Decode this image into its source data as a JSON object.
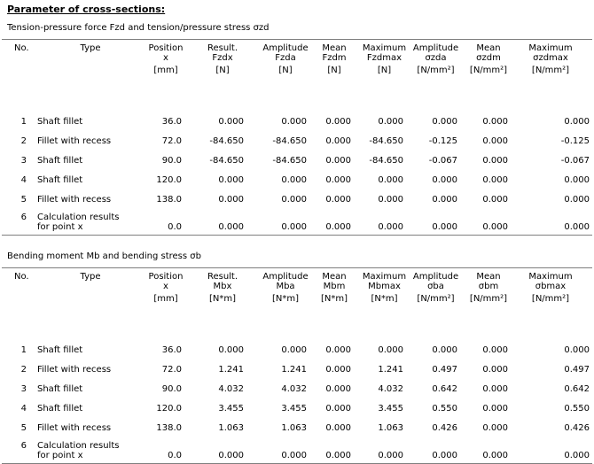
{
  "title": "Parameter of cross-sections:",
  "sections": [
    {
      "title": "Tension-pressure force Fzd and tension/pressure stress σzd",
      "headers": {
        "no": "No.",
        "type": "Type",
        "pos": [
          "Position",
          "x",
          "[mm]"
        ],
        "c1": [
          "Result.",
          "Fzdx",
          "[N]"
        ],
        "c2": [
          "Amplitude",
          "Fzda",
          "[N]"
        ],
        "c3": [
          "Mean",
          "Fzdm",
          "[N]"
        ],
        "c4": [
          "Maximum",
          "Fzdmax",
          "[N]"
        ],
        "c5": [
          "Amplitude",
          "σzda",
          "[N/mm²]"
        ],
        "c6": [
          "Mean",
          "σzdm",
          "[N/mm²]"
        ],
        "c7": [
          "Maximum",
          "σzdmax",
          "[N/mm²]"
        ]
      },
      "rows": [
        {
          "no": "1",
          "type": [
            "Shaft fillet"
          ],
          "pos": "36.0",
          "c1": "0.000",
          "c2": "0.000",
          "c3": "0.000",
          "c4": "0.000",
          "c5": "0.000",
          "c6": "0.000",
          "c7": "0.000"
        },
        {
          "no": "2",
          "type": [
            "Fillet with recess"
          ],
          "pos": "72.0",
          "c1": "-84.650",
          "c2": "-84.650",
          "c3": "0.000",
          "c4": "-84.650",
          "c5": "-0.125",
          "c6": "0.000",
          "c7": "-0.125"
        },
        {
          "no": "3",
          "type": [
            "Shaft fillet"
          ],
          "pos": "90.0",
          "c1": "-84.650",
          "c2": "-84.650",
          "c3": "0.000",
          "c4": "-84.650",
          "c5": "-0.067",
          "c6": "0.000",
          "c7": "-0.067"
        },
        {
          "no": "4",
          "type": [
            "Shaft fillet"
          ],
          "pos": "120.0",
          "c1": "0.000",
          "c2": "0.000",
          "c3": "0.000",
          "c4": "0.000",
          "c5": "0.000",
          "c6": "0.000",
          "c7": "0.000"
        },
        {
          "no": "5",
          "type": [
            "Fillet with recess"
          ],
          "pos": "138.0",
          "c1": "0.000",
          "c2": "0.000",
          "c3": "0.000",
          "c4": "0.000",
          "c5": "0.000",
          "c6": "0.000",
          "c7": "0.000"
        },
        {
          "no": "6",
          "type": [
            "Calculation results",
            "for point x"
          ],
          "pos": "0.0",
          "c1": "0.000",
          "c2": "0.000",
          "c3": "0.000",
          "c4": "0.000",
          "c5": "0.000",
          "c6": "0.000",
          "c7": "0.000"
        }
      ]
    },
    {
      "title": "Bending moment Mb and bending stress σb",
      "headers": {
        "no": "No.",
        "type": "Type",
        "pos": [
          "Position",
          "x",
          "[mm]"
        ],
        "c1": [
          "Result.",
          "Mbx",
          "[N*m]"
        ],
        "c2": [
          "Amplitude",
          "Mba",
          "[N*m]"
        ],
        "c3": [
          "Mean",
          "Mbm",
          "[N*m]"
        ],
        "c4": [
          "Maximum",
          "Mbmax",
          "[N*m]"
        ],
        "c5": [
          "Amplitude",
          "σba",
          "[N/mm²]"
        ],
        "c6": [
          "Mean",
          "σbm",
          "[N/mm²]"
        ],
        "c7": [
          "Maximum",
          "σbmax",
          "[N/mm²]"
        ]
      },
      "rows": [
        {
          "no": "1",
          "type": [
            "Shaft fillet"
          ],
          "pos": "36.0",
          "c1": "0.000",
          "c2": "0.000",
          "c3": "0.000",
          "c4": "0.000",
          "c5": "0.000",
          "c6": "0.000",
          "c7": "0.000"
        },
        {
          "no": "2",
          "type": [
            "Fillet with recess"
          ],
          "pos": "72.0",
          "c1": "1.241",
          "c2": "1.241",
          "c3": "0.000",
          "c4": "1.241",
          "c5": "0.497",
          "c6": "0.000",
          "c7": "0.497"
        },
        {
          "no": "3",
          "type": [
            "Shaft fillet"
          ],
          "pos": "90.0",
          "c1": "4.032",
          "c2": "4.032",
          "c3": "0.000",
          "c4": "4.032",
          "c5": "0.642",
          "c6": "0.000",
          "c7": "0.642"
        },
        {
          "no": "4",
          "type": [
            "Shaft fillet"
          ],
          "pos": "120.0",
          "c1": "3.455",
          "c2": "3.455",
          "c3": "0.000",
          "c4": "3.455",
          "c5": "0.550",
          "c6": "0.000",
          "c7": "0.550"
        },
        {
          "no": "5",
          "type": [
            "Fillet with recess"
          ],
          "pos": "138.0",
          "c1": "1.063",
          "c2": "1.063",
          "c3": "0.000",
          "c4": "1.063",
          "c5": "0.426",
          "c6": "0.000",
          "c7": "0.426"
        },
        {
          "no": "6",
          "type": [
            "Calculation results",
            "for point x"
          ],
          "pos": "0.0",
          "c1": "0.000",
          "c2": "0.000",
          "c3": "0.000",
          "c4": "0.000",
          "c5": "0.000",
          "c6": "0.000",
          "c7": "0.000"
        }
      ]
    }
  ]
}
